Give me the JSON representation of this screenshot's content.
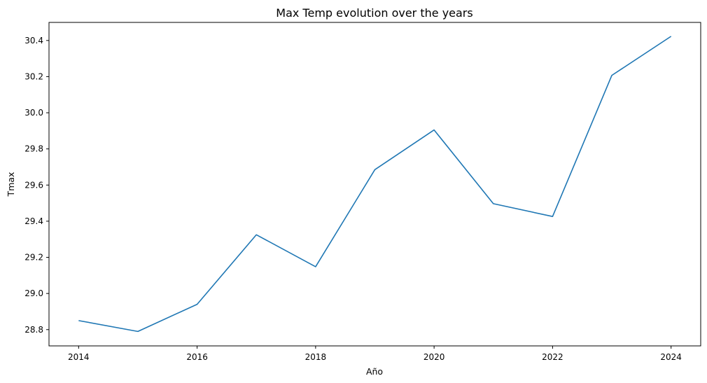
{
  "chart_data": {
    "type": "line",
    "title": "Max Temp evolution over the years",
    "xlabel": "Año",
    "ylabel": "Tmax",
    "x": [
      2014,
      2015,
      2016,
      2017,
      2018,
      2019,
      2020,
      2021,
      2022,
      2023,
      2024
    ],
    "series": [
      {
        "values": [
          28.85,
          28.79,
          28.94,
          29.325,
          29.148,
          29.685,
          29.905,
          29.497,
          29.426,
          30.207,
          30.423
        ],
        "color": "#1f77b4"
      }
    ],
    "xlim": [
      2013.5,
      2024.5
    ],
    "ylim": [
      28.71,
      30.5
    ],
    "xticks": [
      2014,
      2016,
      2018,
      2020,
      2022,
      2024
    ],
    "xtick_labels": [
      "2014",
      "2016",
      "2018",
      "2020",
      "2022",
      "2024"
    ],
    "yticks": [
      28.8,
      29.0,
      29.2,
      29.4,
      29.6,
      29.8,
      30.0,
      30.2,
      30.4
    ],
    "ytick_labels": [
      "28.8",
      "29.0",
      "29.2",
      "29.4",
      "29.6",
      "29.8",
      "30.0",
      "30.2",
      "30.4"
    ],
    "grid": false,
    "legend": "none"
  }
}
